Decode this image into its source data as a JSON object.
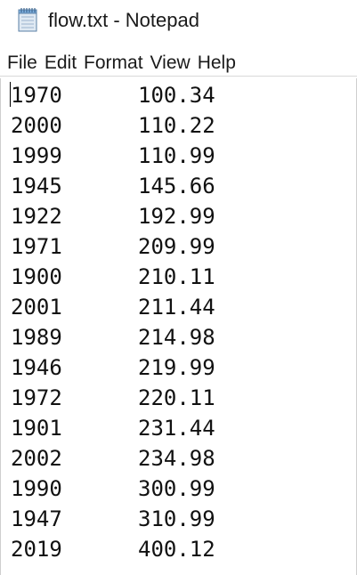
{
  "window": {
    "title": "flow.txt - Notepad",
    "icon": "notepad-icon"
  },
  "menu": {
    "items": [
      "File",
      "Edit",
      "Format",
      "View",
      "Help"
    ]
  },
  "document": {
    "lines": [
      {
        "year": "1970",
        "value": "100.34"
      },
      {
        "year": "2000",
        "value": "110.22"
      },
      {
        "year": "1999",
        "value": "110.99"
      },
      {
        "year": "1945",
        "value": "145.66"
      },
      {
        "year": "1922",
        "value": "192.99"
      },
      {
        "year": "1971",
        "value": "209.99"
      },
      {
        "year": "1900",
        "value": "210.11"
      },
      {
        "year": "2001",
        "value": "211.44"
      },
      {
        "year": "1989",
        "value": "214.98"
      },
      {
        "year": "1946",
        "value": "219.99"
      },
      {
        "year": "1972",
        "value": "220.11"
      },
      {
        "year": "1901",
        "value": "231.44"
      },
      {
        "year": "2002",
        "value": "234.98"
      },
      {
        "year": "1990",
        "value": "300.99"
      },
      {
        "year": "1947",
        "value": "310.99"
      },
      {
        "year": "2019",
        "value": "400.12"
      }
    ]
  }
}
